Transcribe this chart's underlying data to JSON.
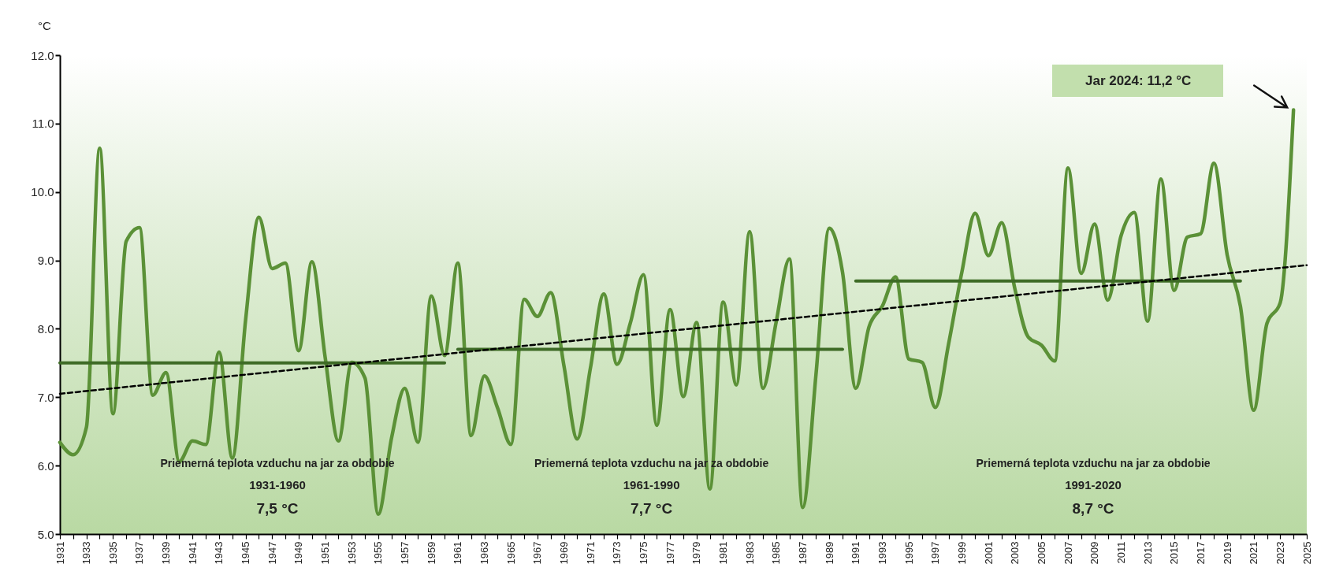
{
  "chart_data": {
    "type": "line",
    "ylabel": "°C",
    "x": [
      1931,
      1932,
      1933,
      1934,
      1935,
      1936,
      1937,
      1938,
      1939,
      1940,
      1941,
      1942,
      1943,
      1944,
      1945,
      1946,
      1947,
      1948,
      1949,
      1950,
      1951,
      1952,
      1953,
      1954,
      1955,
      1956,
      1957,
      1958,
      1959,
      1960,
      1961,
      1962,
      1963,
      1964,
      1965,
      1966,
      1967,
      1968,
      1969,
      1970,
      1971,
      1972,
      1973,
      1974,
      1975,
      1976,
      1977,
      1978,
      1979,
      1980,
      1981,
      1982,
      1983,
      1984,
      1985,
      1986,
      1987,
      1988,
      1989,
      1990,
      1991,
      1992,
      1993,
      1994,
      1995,
      1996,
      1997,
      1998,
      1999,
      2000,
      2001,
      2002,
      2003,
      2004,
      2005,
      2006,
      2007,
      2008,
      2009,
      2010,
      2011,
      2012,
      2013,
      2014,
      2015,
      2016,
      2017,
      2018,
      2019,
      2020,
      2021,
      2022,
      2023,
      2024
    ],
    "series": [
      {
        "color": "#5b9137",
        "values": [
          6.34,
          6.16,
          6.56,
          10.64,
          6.76,
          9.28,
          9.48,
          7.03,
          7.36,
          6.06,
          6.36,
          6.31,
          7.66,
          6.11,
          8.13,
          9.63,
          8.88,
          8.96,
          7.68,
          8.98,
          7.58,
          6.36,
          7.51,
          7.28,
          5.29,
          6.4,
          7.13,
          6.34,
          8.48,
          7.61,
          8.96,
          6.44,
          7.31,
          6.84,
          6.31,
          8.43,
          8.18,
          8.53,
          7.46,
          6.39,
          7.43,
          8.51,
          7.48,
          8.08,
          8.79,
          6.59,
          8.28,
          7.01,
          8.09,
          5.66,
          8.39,
          7.18,
          9.42,
          7.13,
          8.1,
          9.02,
          5.39,
          7.33,
          9.47,
          8.83,
          7.13,
          8.03,
          8.33,
          8.76,
          7.56,
          7.51,
          6.85,
          7.78,
          8.83,
          9.69,
          9.07,
          9.55,
          8.58,
          7.88,
          7.76,
          7.53,
          10.35,
          8.81,
          9.53,
          8.42,
          9.36,
          9.7,
          8.11,
          10.19,
          8.56,
          9.34,
          9.39,
          10.42,
          9.08,
          8.33,
          6.81,
          8.08,
          8.38,
          11.2
        ]
      },
      {
        "type": "line",
        "color": "#3e6b26",
        "x": [
          1931,
          1960
        ],
        "values": [
          7.5,
          7.5
        ]
      },
      {
        "type": "line",
        "color": "#3e6b26",
        "x": [
          1961,
          1990
        ],
        "values": [
          7.7,
          7.7
        ]
      },
      {
        "type": "line",
        "color": "#3e6b26",
        "x": [
          1991,
          2020
        ],
        "values": [
          8.7,
          8.7
        ]
      },
      {
        "type": "line",
        "color": "#000000",
        "line_style": "dashed",
        "x": [
          1931,
          2025
        ],
        "values": [
          7.05,
          8.93
        ]
      }
    ],
    "xlim": [
      1931,
      2025
    ],
    "xticks": [
      1931,
      {
        "value": 1932,
        "label": null
      },
      1933,
      {
        "value": 1934,
        "label": null
      },
      1935,
      {
        "value": 1936,
        "label": null
      },
      1937,
      {
        "value": 1938,
        "label": null
      },
      1939,
      {
        "value": 1940,
        "label": null
      },
      1941,
      {
        "value": 1942,
        "label": null
      },
      1943,
      {
        "value": 1944,
        "label": null
      },
      1945,
      {
        "value": 1946,
        "label": null
      },
      1947,
      {
        "value": 1948,
        "label": null
      },
      1949,
      {
        "value": 1950,
        "label": null
      },
      1951,
      {
        "value": 1952,
        "label": null
      },
      1953,
      {
        "value": 1954,
        "label": null
      },
      1955,
      {
        "value": 1956,
        "label": null
      },
      1957,
      {
        "value": 1958,
        "label": null
      },
      1959,
      {
        "value": 1960,
        "label": null
      },
      1961,
      {
        "value": 1962,
        "label": null
      },
      1963,
      {
        "value": 1964,
        "label": null
      },
      1965,
      {
        "value": 1966,
        "label": null
      },
      1967,
      {
        "value": 1968,
        "label": null
      },
      1969,
      {
        "value": 1970,
        "label": null
      },
      1971,
      {
        "value": 1972,
        "label": null
      },
      1973,
      {
        "value": 1974,
        "label": null
      },
      1975,
      {
        "value": 1976,
        "label": null
      },
      1977,
      {
        "value": 1978,
        "label": null
      },
      1979,
      {
        "value": 1980,
        "label": null
      },
      1981,
      {
        "value": 1982,
        "label": null
      },
      1983,
      {
        "value": 1984,
        "label": null
      },
      1985,
      {
        "value": 1986,
        "label": null
      },
      1987,
      {
        "value": 1988,
        "label": null
      },
      1989,
      {
        "value": 1990,
        "label": null
      },
      1991,
      {
        "value": 1992,
        "label": null
      },
      1993,
      {
        "value": 1994,
        "label": null
      },
      1995,
      {
        "value": 1996,
        "label": null
      },
      1997,
      {
        "value": 1998,
        "label": null
      },
      1999,
      {
        "value": 2000,
        "label": null
      },
      2001,
      {
        "value": 2002,
        "label": null
      },
      2003,
      {
        "value": 2004,
        "label": null
      },
      2005,
      {
        "value": 2006,
        "label": null
      },
      2007,
      {
        "value": 2008,
        "label": null
      },
      2009,
      {
        "value": 2010,
        "label": null
      },
      2011,
      {
        "value": 2012,
        "label": null
      },
      2013,
      {
        "value": 2014,
        "label": null
      },
      2015,
      {
        "value": 2016,
        "label": null
      },
      2017,
      {
        "value": 2018,
        "label": null
      },
      2019,
      {
        "value": 2020,
        "label": null
      },
      2021,
      {
        "value": 2022,
        "label": null
      },
      2023,
      {
        "value": 2024,
        "label": null
      },
      2025
    ],
    "ylim": [
      5,
      12
    ],
    "yticks": [
      {
        "value": 5,
        "label": "5.0"
      },
      {
        "value": 6,
        "label": "6.0"
      },
      {
        "value": 7,
        "label": "7.0"
      },
      {
        "value": 8,
        "label": "8.0"
      },
      {
        "value": 9,
        "label": "9.0"
      },
      {
        "value": 10,
        "label": "10.0"
      },
      {
        "value": 11,
        "label": "11.0"
      },
      {
        "value": 12,
        "label": "12.0"
      }
    ],
    "annotations": [
      "Priemerná teplota vzduchu na jar za obdobie",
      "1931-1960",
      "7,5 °C",
      "Priemerná teplota vzduchu na jar za obdobie",
      "1961-1990",
      "7,7 °C",
      "Priemerná teplota vzduchu na jar za obdobie",
      "1991-2020",
      "8,7 °C",
      "Jar 2024: 11,2 °C"
    ]
  }
}
